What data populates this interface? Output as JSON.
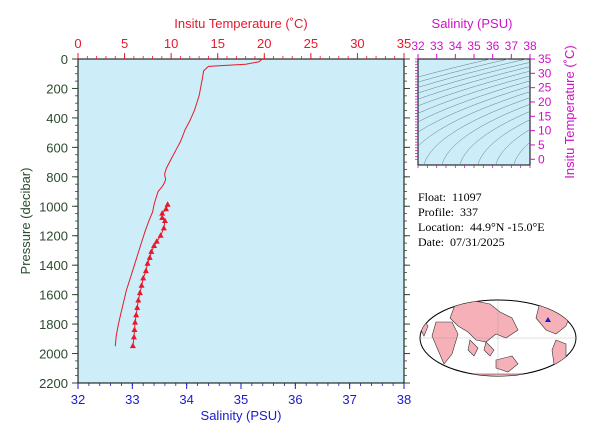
{
  "info": {
    "float_label": "Float:",
    "float_value": "11097",
    "profile_label": "Profile:",
    "profile_value": "337",
    "location_label": "Location:",
    "location_value": "44.9°N  -15.0°E",
    "date_label": "Date:",
    "date_value": "07/31/2025"
  },
  "colors": {
    "plot_bg": "#cdeef8",
    "temperature": "#e8182c",
    "salinity": "#1a1ad0",
    "pressure": "#2c4a2c",
    "inset": "#d010c8",
    "land": "#f5b0b8",
    "float_marker": "#1a1ad0"
  },
  "chart_data": [
    {
      "type": "line",
      "title": "",
      "xlabel_top": "Insitu Temperature (˚C)",
      "xlabel_bottom": "Salinity (PSU)",
      "ylabel": "Pressure (decibar)",
      "top_axis": {
        "range": [
          0,
          35
        ],
        "ticks": [
          "0",
          "5",
          "10",
          "15",
          "20",
          "25",
          "30",
          "35"
        ]
      },
      "bottom_axis": {
        "range": [
          32,
          38
        ],
        "ticks": [
          "32",
          "33",
          "34",
          "35",
          "36",
          "37",
          "38"
        ]
      },
      "left_axis": {
        "range": [
          0,
          2200
        ],
        "inverted": true,
        "ticks": [
          "0",
          "200",
          "400",
          "600",
          "800",
          "1000",
          "1200",
          "1400",
          "1600",
          "1800",
          "2000",
          "2200"
        ]
      },
      "grid": false,
      "series": [
        {
          "variable": "temperature",
          "axis": "top",
          "marker": "none",
          "points": [
            [
              19.8,
              0
            ],
            [
              19.4,
              20
            ],
            [
              18.0,
              35
            ],
            [
              14.0,
              50
            ],
            [
              13.5,
              80
            ],
            [
              13.3,
              150
            ],
            [
              13.0,
              250
            ],
            [
              12.5,
              350
            ],
            [
              12.0,
              420
            ],
            [
              11.5,
              480
            ],
            [
              11.0,
              560
            ],
            [
              10.5,
              620
            ],
            [
              10.0,
              680
            ],
            [
              9.5,
              740
            ],
            [
              9.3,
              780
            ],
            [
              9.4,
              820
            ],
            [
              9.2,
              850
            ],
            [
              9.0,
              870
            ],
            [
              8.6,
              900
            ],
            [
              8.4,
              940
            ],
            [
              8.2,
              980
            ],
            [
              8.0,
              1040
            ],
            [
              7.6,
              1100
            ],
            [
              7.2,
              1170
            ],
            [
              6.8,
              1250
            ],
            [
              6.4,
              1330
            ],
            [
              6.0,
              1410
            ],
            [
              5.6,
              1490
            ],
            [
              5.2,
              1570
            ],
            [
              4.9,
              1650
            ],
            [
              4.6,
              1730
            ],
            [
              4.3,
              1810
            ],
            [
              4.1,
              1880
            ],
            [
              4.0,
              1950
            ]
          ]
        },
        {
          "variable": "salinity",
          "axis": "bottom",
          "marker": "triangle",
          "points": [
            [
              33.65,
              990
            ],
            [
              33.62,
              1020
            ],
            [
              33.55,
              1050
            ],
            [
              33.55,
              1080
            ],
            [
              33.6,
              1100
            ],
            [
              33.58,
              1150
            ],
            [
              33.52,
              1200
            ],
            [
              33.45,
              1240
            ],
            [
              33.4,
              1270
            ],
            [
              33.35,
              1310
            ],
            [
              33.32,
              1350
            ],
            [
              33.28,
              1390
            ],
            [
              33.25,
              1440
            ],
            [
              33.2,
              1490
            ],
            [
              33.17,
              1540
            ],
            [
              33.14,
              1590
            ],
            [
              33.11,
              1640
            ],
            [
              33.09,
              1690
            ],
            [
              33.07,
              1740
            ],
            [
              33.05,
              1790
            ],
            [
              33.04,
              1840
            ],
            [
              33.03,
              1890
            ],
            [
              33.01,
              1950
            ]
          ]
        }
      ]
    },
    {
      "type": "line",
      "title": "",
      "xlabel": "Salinity (PSU)",
      "ylabel": "Insitu Temperature (˚C)",
      "x_axis": {
        "range": [
          32,
          38
        ],
        "ticks": [
          "32",
          "33",
          "34",
          "35",
          "36",
          "37",
          "38"
        ]
      },
      "y_axis": {
        "range": [
          -2,
          35
        ],
        "ticks": [
          "0",
          "5",
          "10",
          "15",
          "20",
          "25",
          "30",
          "35"
        ]
      },
      "contours": "density isolines"
    }
  ]
}
